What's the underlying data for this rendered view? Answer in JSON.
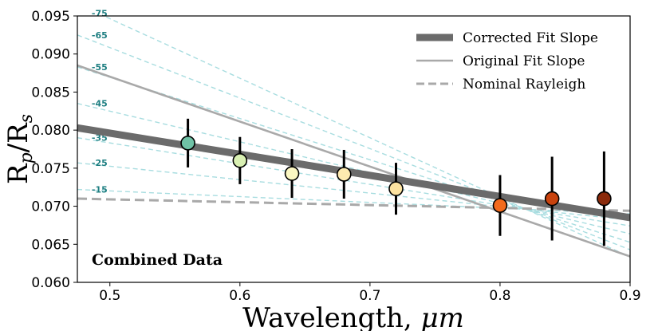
{
  "chart_data": {
    "type": "scatter",
    "xlabel_text": "Wavelength, ",
    "xlabel_unit": "μm",
    "ylabel_main": "R",
    "ylabel_sub1": "p",
    "ylabel_mid": "/R",
    "ylabel_sub2": "s",
    "xlim": [
      0.475,
      0.9
    ],
    "ylim": [
      0.06,
      0.095
    ],
    "x_ticks": [
      {
        "value": 0.5,
        "label": "0.5"
      },
      {
        "value": 0.6,
        "label": "0.6"
      },
      {
        "value": 0.7,
        "label": "0.7"
      },
      {
        "value": 0.8,
        "label": "0.8"
      },
      {
        "value": 0.9,
        "label": "0.9"
      }
    ],
    "y_ticks": [
      {
        "value": 0.06,
        "label": "0.060"
      },
      {
        "value": 0.065,
        "label": "0.065"
      },
      {
        "value": 0.07,
        "label": "0.070"
      },
      {
        "value": 0.075,
        "label": "0.075"
      },
      {
        "value": 0.08,
        "label": "0.080"
      },
      {
        "value": 0.085,
        "label": "0.085"
      },
      {
        "value": 0.09,
        "label": "0.090"
      },
      {
        "value": 0.095,
        "label": "0.095"
      }
    ],
    "points": [
      {
        "x": 0.56,
        "y": 0.0783,
        "err": 0.0032,
        "color": "#6fc2a6"
      },
      {
        "x": 0.6,
        "y": 0.076,
        "err": 0.0031,
        "color": "#d9f0b3"
      },
      {
        "x": 0.64,
        "y": 0.0743,
        "err": 0.0032,
        "color": "#fbf7c2"
      },
      {
        "x": 0.68,
        "y": 0.0742,
        "err": 0.0032,
        "color": "#fdeab0"
      },
      {
        "x": 0.72,
        "y": 0.0723,
        "err": 0.0034,
        "color": "#fde3a0"
      },
      {
        "x": 0.8,
        "y": 0.0701,
        "err": 0.004,
        "color": "#f26b1d"
      },
      {
        "x": 0.84,
        "y": 0.071,
        "err": 0.0055,
        "color": "#c9430e"
      },
      {
        "x": 0.88,
        "y": 0.071,
        "err": 0.0062,
        "color": "#8b2a0b"
      }
    ],
    "lines": {
      "corrected": {
        "name": "Corrected Fit Slope",
        "x": [
          0.475,
          0.9
        ],
        "y": [
          0.0803,
          0.0685
        ],
        "color": "#6b6b6b"
      },
      "original": {
        "name": "Original Fit Slope",
        "x": [
          0.475,
          0.9
        ],
        "y": [
          0.0885,
          0.0634
        ],
        "color": "#a9a9a9"
      },
      "nominal": {
        "name": "Nominal Rayleigh",
        "x": [
          0.475,
          0.9
        ],
        "y": [
          0.071,
          0.0694
        ],
        "color": "#a9a9a9"
      }
    },
    "rayleigh_family": {
      "color": "#a8dde0",
      "converge": {
        "x": 0.82,
        "y": 0.0696
      },
      "curves": [
        {
          "label": "-15",
          "y_start": 0.0722
        },
        {
          "label": "-25",
          "y_start": 0.0757
        },
        {
          "label": "-35",
          "y_start": 0.079
        },
        {
          "label": "-45",
          "y_start": 0.0835
        },
        {
          "label": "-55",
          "y_start": 0.0883
        },
        {
          "label": "-65",
          "y_start": 0.0925
        },
        {
          "label": "-75",
          "y_start": 0.0966
        }
      ]
    },
    "legend": {
      "position": "top-right",
      "entries": [
        {
          "label": "Corrected Fit Slope",
          "style": "thick-solid"
        },
        {
          "label": "Original Fit Slope",
          "style": "thin-solid"
        },
        {
          "label": "Nominal Rayleigh",
          "style": "dashed"
        }
      ]
    },
    "annotation": "Combined Data"
  }
}
